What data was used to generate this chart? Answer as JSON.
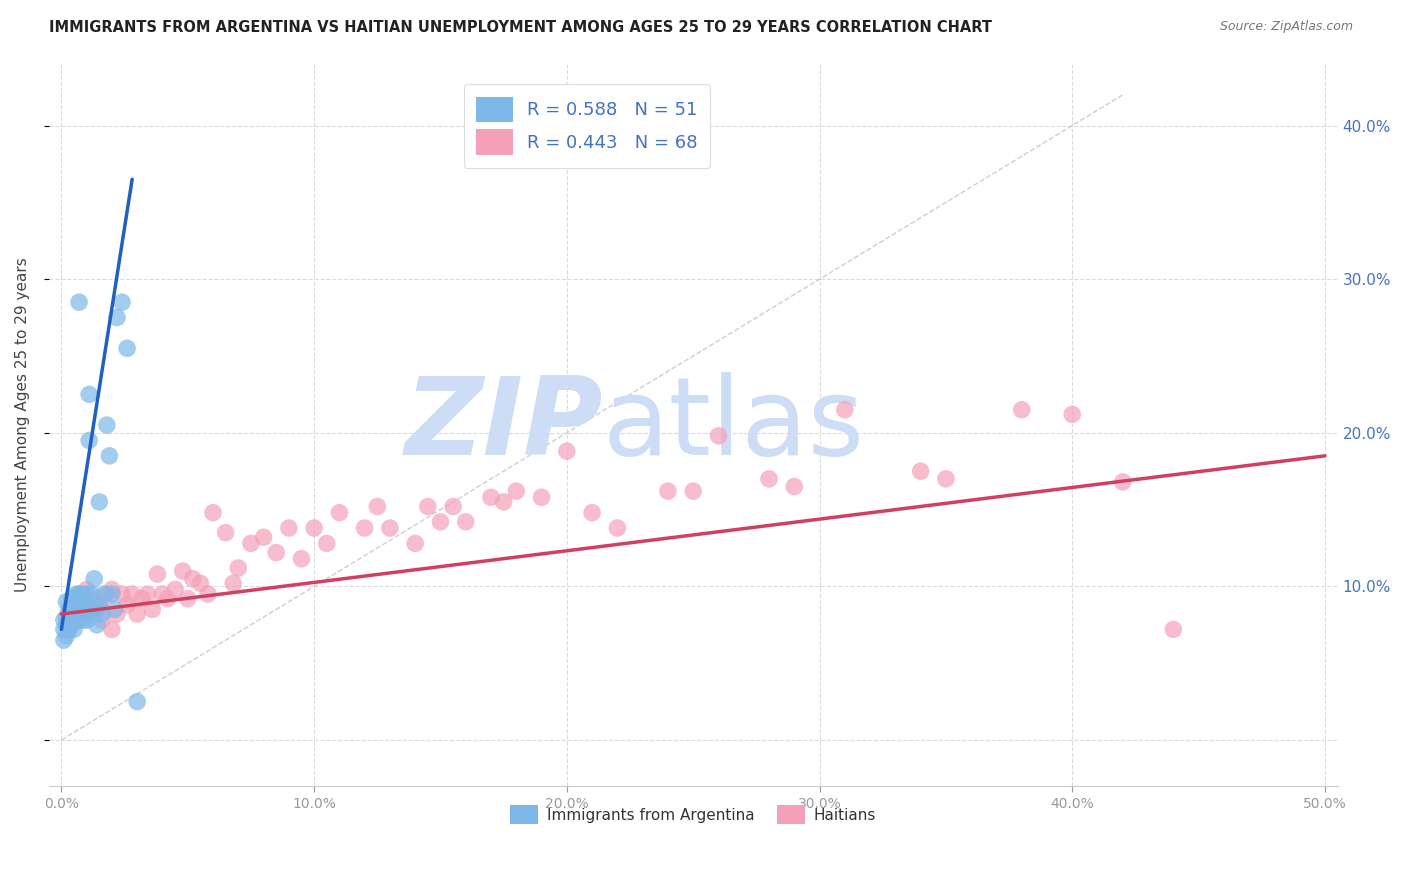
{
  "title": "IMMIGRANTS FROM ARGENTINA VS HAITIAN UNEMPLOYMENT AMONG AGES 25 TO 29 YEARS CORRELATION CHART",
  "source": "Source: ZipAtlas.com",
  "ylabel": "Unemployment Among Ages 25 to 29 years",
  "xlim": [
    -0.005,
    0.505
  ],
  "ylim": [
    -0.03,
    0.44
  ],
  "blue_R": 0.588,
  "blue_N": 51,
  "pink_R": 0.443,
  "pink_N": 68,
  "blue_color": "#7db8e8",
  "pink_color": "#f4a0b8",
  "blue_line_color": "#2060c0",
  "pink_line_color": "#d04060",
  "legend_label_blue": "Immigrants from Argentina",
  "legend_label_pink": "Haitians",
  "watermark_color": "#ccddf5",
  "background_color": "#ffffff",
  "grid_color": "#d8d8d8",
  "blue_scatter_x": [
    0.001,
    0.001,
    0.001,
    0.002,
    0.002,
    0.002,
    0.002,
    0.003,
    0.003,
    0.003,
    0.003,
    0.004,
    0.004,
    0.004,
    0.004,
    0.005,
    0.005,
    0.005,
    0.006,
    0.006,
    0.006,
    0.007,
    0.007,
    0.007,
    0.008,
    0.008,
    0.008,
    0.009,
    0.009,
    0.01,
    0.01,
    0.01,
    0.011,
    0.011,
    0.012,
    0.012,
    0.013,
    0.014,
    0.014,
    0.015,
    0.015,
    0.016,
    0.017,
    0.018,
    0.019,
    0.02,
    0.021,
    0.022,
    0.024,
    0.026,
    0.03
  ],
  "blue_scatter_y": [
    0.072,
    0.078,
    0.065,
    0.08,
    0.075,
    0.068,
    0.09,
    0.082,
    0.078,
    0.072,
    0.085,
    0.08,
    0.075,
    0.085,
    0.092,
    0.072,
    0.08,
    0.088,
    0.078,
    0.085,
    0.095,
    0.09,
    0.095,
    0.285,
    0.082,
    0.078,
    0.095,
    0.082,
    0.09,
    0.078,
    0.085,
    0.095,
    0.195,
    0.225,
    0.095,
    0.085,
    0.105,
    0.085,
    0.075,
    0.155,
    0.088,
    0.082,
    0.095,
    0.205,
    0.185,
    0.095,
    0.085,
    0.275,
    0.285,
    0.255,
    0.025
  ],
  "pink_scatter_x": [
    0.005,
    0.008,
    0.01,
    0.012,
    0.014,
    0.015,
    0.016,
    0.018,
    0.02,
    0.02,
    0.022,
    0.024,
    0.026,
    0.028,
    0.03,
    0.032,
    0.034,
    0.036,
    0.038,
    0.04,
    0.042,
    0.045,
    0.048,
    0.05,
    0.052,
    0.055,
    0.058,
    0.06,
    0.065,
    0.068,
    0.07,
    0.075,
    0.08,
    0.085,
    0.09,
    0.095,
    0.1,
    0.105,
    0.11,
    0.12,
    0.125,
    0.13,
    0.14,
    0.145,
    0.15,
    0.155,
    0.16,
    0.17,
    0.175,
    0.18,
    0.19,
    0.2,
    0.21,
    0.22,
    0.24,
    0.25,
    0.26,
    0.28,
    0.29,
    0.31,
    0.34,
    0.35,
    0.38,
    0.4,
    0.42,
    0.44,
    0.008,
    0.012
  ],
  "pink_scatter_y": [
    0.09,
    0.085,
    0.098,
    0.082,
    0.092,
    0.088,
    0.078,
    0.095,
    0.072,
    0.098,
    0.082,
    0.095,
    0.088,
    0.095,
    0.082,
    0.092,
    0.095,
    0.085,
    0.108,
    0.095,
    0.092,
    0.098,
    0.11,
    0.092,
    0.105,
    0.102,
    0.095,
    0.148,
    0.135,
    0.102,
    0.112,
    0.128,
    0.132,
    0.122,
    0.138,
    0.118,
    0.138,
    0.128,
    0.148,
    0.138,
    0.152,
    0.138,
    0.128,
    0.152,
    0.142,
    0.152,
    0.142,
    0.158,
    0.155,
    0.162,
    0.158,
    0.188,
    0.148,
    0.138,
    0.162,
    0.162,
    0.198,
    0.17,
    0.165,
    0.215,
    0.175,
    0.17,
    0.215,
    0.212,
    0.168,
    0.072,
    0.078,
    0.088
  ],
  "blue_line_x0": 0.0,
  "blue_line_x1": 0.028,
  "blue_line_y0": 0.072,
  "blue_line_y1": 0.365,
  "pink_line_x0": 0.0,
  "pink_line_x1": 0.5,
  "pink_line_y0": 0.082,
  "pink_line_y1": 0.185,
  "diag_color": "#b8b8cc"
}
